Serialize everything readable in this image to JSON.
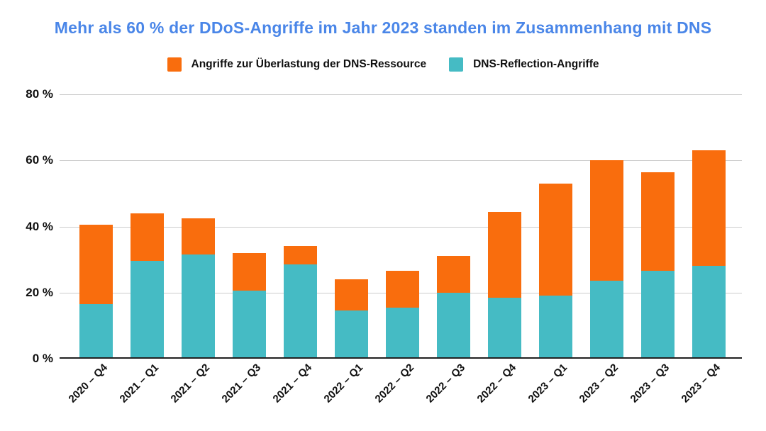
{
  "title": "Mehr als 60 % der DDoS-Angriffe im Jahr 2023 standen im Zusammenhang mit DNS",
  "colors": {
    "title": "#4A86E8",
    "overload_orange": "#F96D0D",
    "reflection_teal": "#45BBC4",
    "gridline": "#CCCCCC",
    "axis": "#212121",
    "text": "#0F0F0F"
  },
  "legend": [
    {
      "label": "Angriffe zur Überlastung der DNS-Ressource",
      "color": "#F96D0D"
    },
    {
      "label": "DNS-Reflection-Angriffe",
      "color": "#45BBC4"
    }
  ],
  "chart_data": {
    "type": "bar",
    "stacked": true,
    "title": "Mehr als 60 % der DDoS-Angriffe im Jahr 2023 standen im Zusammenhang mit DNS",
    "categories": [
      "2020 – Q4",
      "2021 – Q1",
      "2021 – Q2",
      "2021 – Q3",
      "2021 – Q4",
      "2022 – Q1",
      "2022 – Q2",
      "2022 – Q3",
      "2022 – Q4",
      "2023 – Q1",
      "2023 – Q2",
      "2023 – Q3",
      "2023 – Q4"
    ],
    "series": [
      {
        "name": "DNS-Reflection-Angriffe",
        "color": "#45BBC4",
        "values": [
          16.5,
          29.5,
          31.5,
          20.5,
          28.5,
          14.5,
          15.5,
          20,
          18.5,
          19,
          23.5,
          26.5,
          28
        ]
      },
      {
        "name": "Angriffe zur Überlastung der DNS-Ressource",
        "color": "#F96D0D",
        "values": [
          24,
          14.5,
          11,
          11.5,
          5.5,
          9.5,
          11,
          11,
          26,
          34,
          36.5,
          30,
          35
        ]
      }
    ],
    "totals": [
      40.5,
      44,
      42.5,
      32,
      34,
      24,
      26.5,
      31,
      44.5,
      53,
      60,
      56.5,
      63
    ],
    "xlabel": "",
    "ylabel": "",
    "ylim": [
      0,
      80
    ],
    "y_ticks": [
      {
        "value": 80,
        "label": "80 %"
      },
      {
        "value": 60,
        "label": "60 %"
      },
      {
        "value": 40,
        "label": "40 %"
      },
      {
        "value": 20,
        "label": "20 %"
      },
      {
        "value": 0,
        "label": "0 %"
      }
    ],
    "grid": true,
    "legend_position": "top"
  }
}
